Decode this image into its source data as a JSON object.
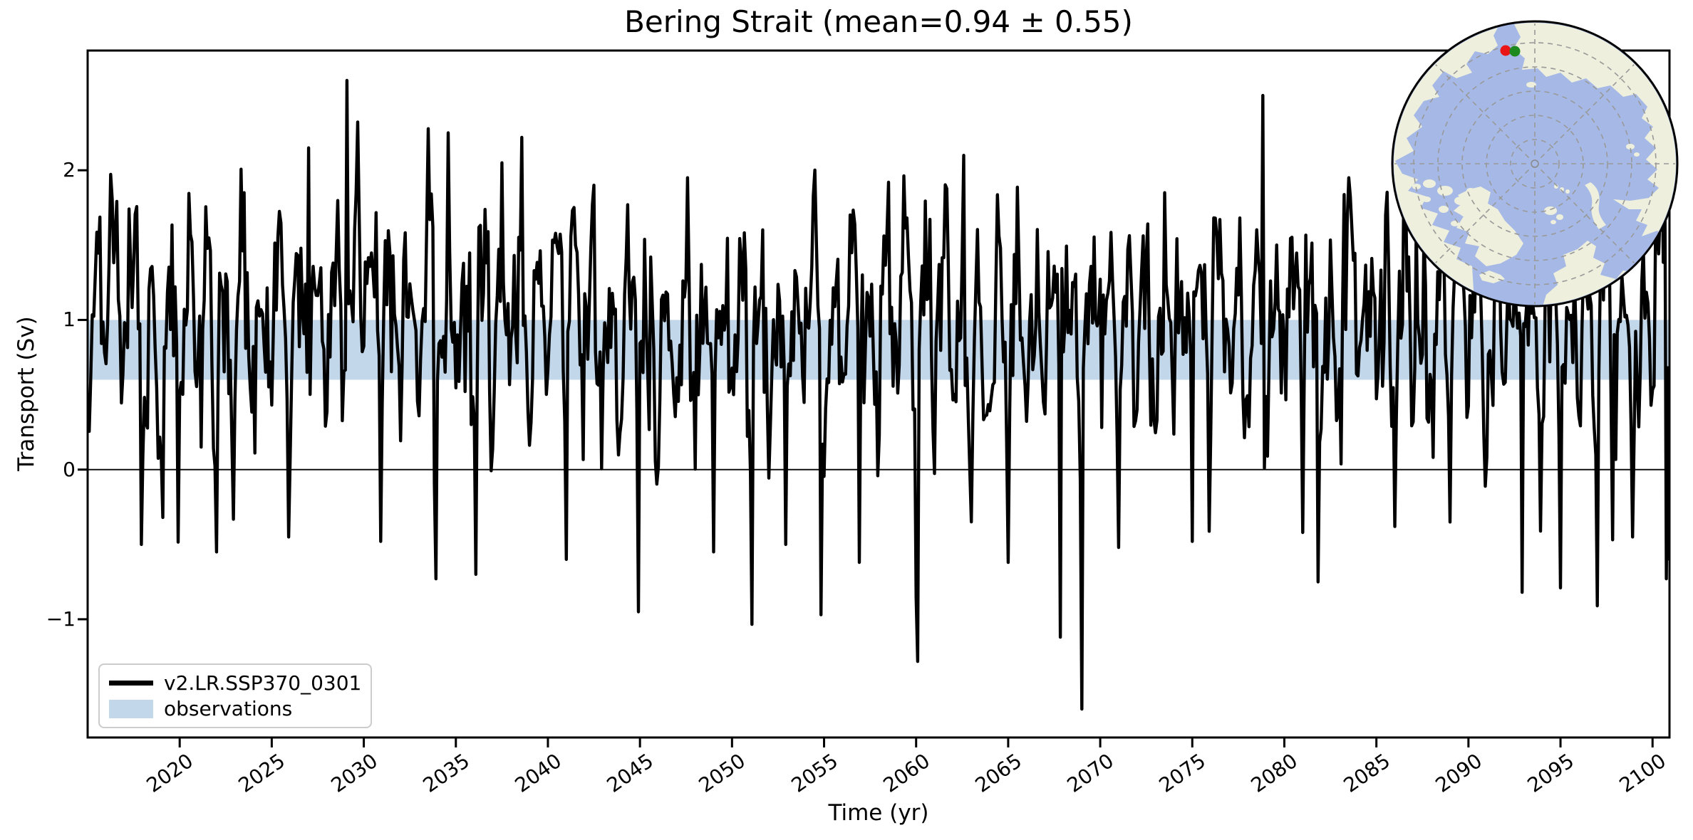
{
  "chart_data": {
    "type": "line",
    "title": "Bering Strait (mean=0.94 ± 0.55)",
    "xlabel": "Time (yr)",
    "ylabel": "Transport (Sv)",
    "xlim": [
      2015.0,
      2100.92
    ],
    "ylim": [
      -1.79,
      2.8
    ],
    "x_ticks": [
      2020,
      2025,
      2030,
      2035,
      2040,
      2045,
      2050,
      2055,
      2060,
      2065,
      2070,
      2075,
      2080,
      2085,
      2090,
      2095,
      2100
    ],
    "x_tick_rotation_deg": 35,
    "y_ticks": [
      2,
      1,
      0,
      -1
    ],
    "y_tick_labels": [
      "2",
      "1",
      "0",
      "−1"
    ],
    "grid": false,
    "zero_line": 0,
    "observations_band": {
      "ymin": 0.6,
      "ymax": 1.0,
      "color": "#c2d7ea",
      "label": "observations"
    },
    "legend": {
      "position": "lower left",
      "entries": [
        {
          "label": "v2.LR.SSP370_0301",
          "type": "line",
          "color": "#000000"
        },
        {
          "label": "observations",
          "type": "patch",
          "color": "#c2d7ea"
        }
      ]
    },
    "series": [
      {
        "name": "v2.LR.SSP370_0301",
        "color": "#000000",
        "stats": {
          "mean": 0.94,
          "std": 0.55
        },
        "time_range": [
          2015.0,
          2100.917
        ],
        "cadence_per_year": 12,
        "generator": {
          "seed": 1303,
          "seasonal_amp1": 0.4,
          "seasonal_phase1": 0.21,
          "seasonal_amp2": 0.1,
          "seasonal_phase2": 0.05,
          "ar": 0.35,
          "sigma": 0.3,
          "winter_dip_prob": 0.06
        },
        "notable_extremes": [
          [
            2017.92,
            -0.5
          ],
          [
            2019.08,
            -0.32
          ],
          [
            2022.0,
            -0.55
          ],
          [
            2023.5,
            1.85
          ],
          [
            2025.92,
            -0.45
          ],
          [
            2027.0,
            2.15
          ],
          [
            2029.08,
            2.6
          ],
          [
            2030.92,
            -0.48
          ],
          [
            2033.92,
            -0.73
          ],
          [
            2034.58,
            2.25
          ],
          [
            2036.08,
            -0.7
          ],
          [
            2038.58,
            2.22
          ],
          [
            2041.0,
            -0.6
          ],
          [
            2042.5,
            1.9
          ],
          [
            2044.92,
            -0.95
          ],
          [
            2047.58,
            1.95
          ],
          [
            2049.0,
            -0.55
          ],
          [
            2052.92,
            -0.5
          ],
          [
            2054.83,
            -0.97
          ],
          [
            2056.92,
            -0.62
          ],
          [
            2058.5,
            1.92
          ],
          [
            2060.0,
            -0.85
          ],
          [
            2062.58,
            2.1
          ],
          [
            2065.0,
            -0.62
          ],
          [
            2067.83,
            -1.12
          ],
          [
            2069.0,
            -1.6
          ],
          [
            2071.0,
            -0.52
          ],
          [
            2073.5,
            1.85
          ],
          [
            2075.0,
            -0.48
          ],
          [
            2078.83,
            2.5
          ],
          [
            2081.0,
            -0.42
          ],
          [
            2083.5,
            1.95
          ],
          [
            2086.0,
            -0.38
          ],
          [
            2086.5,
            2.02
          ],
          [
            2089.0,
            -0.35
          ],
          [
            2092.92,
            -0.82
          ],
          [
            2095.0,
            -0.79
          ],
          [
            2097.0,
            -0.91
          ],
          [
            2098.92,
            -0.45
          ],
          [
            2100.75,
            -0.73
          ],
          [
            2100.92,
            -0.6
          ]
        ]
      }
    ]
  },
  "inset_map": {
    "ocean_color": "#a6b9e6",
    "land_color": "#eeefdc",
    "graticule_color": "#999999",
    "border_color": "#000000",
    "markers": [
      {
        "name": "obs-location-dot",
        "color": "#ea1515"
      },
      {
        "name": "model-location-dot",
        "color": "#1c8a1e"
      }
    ]
  }
}
